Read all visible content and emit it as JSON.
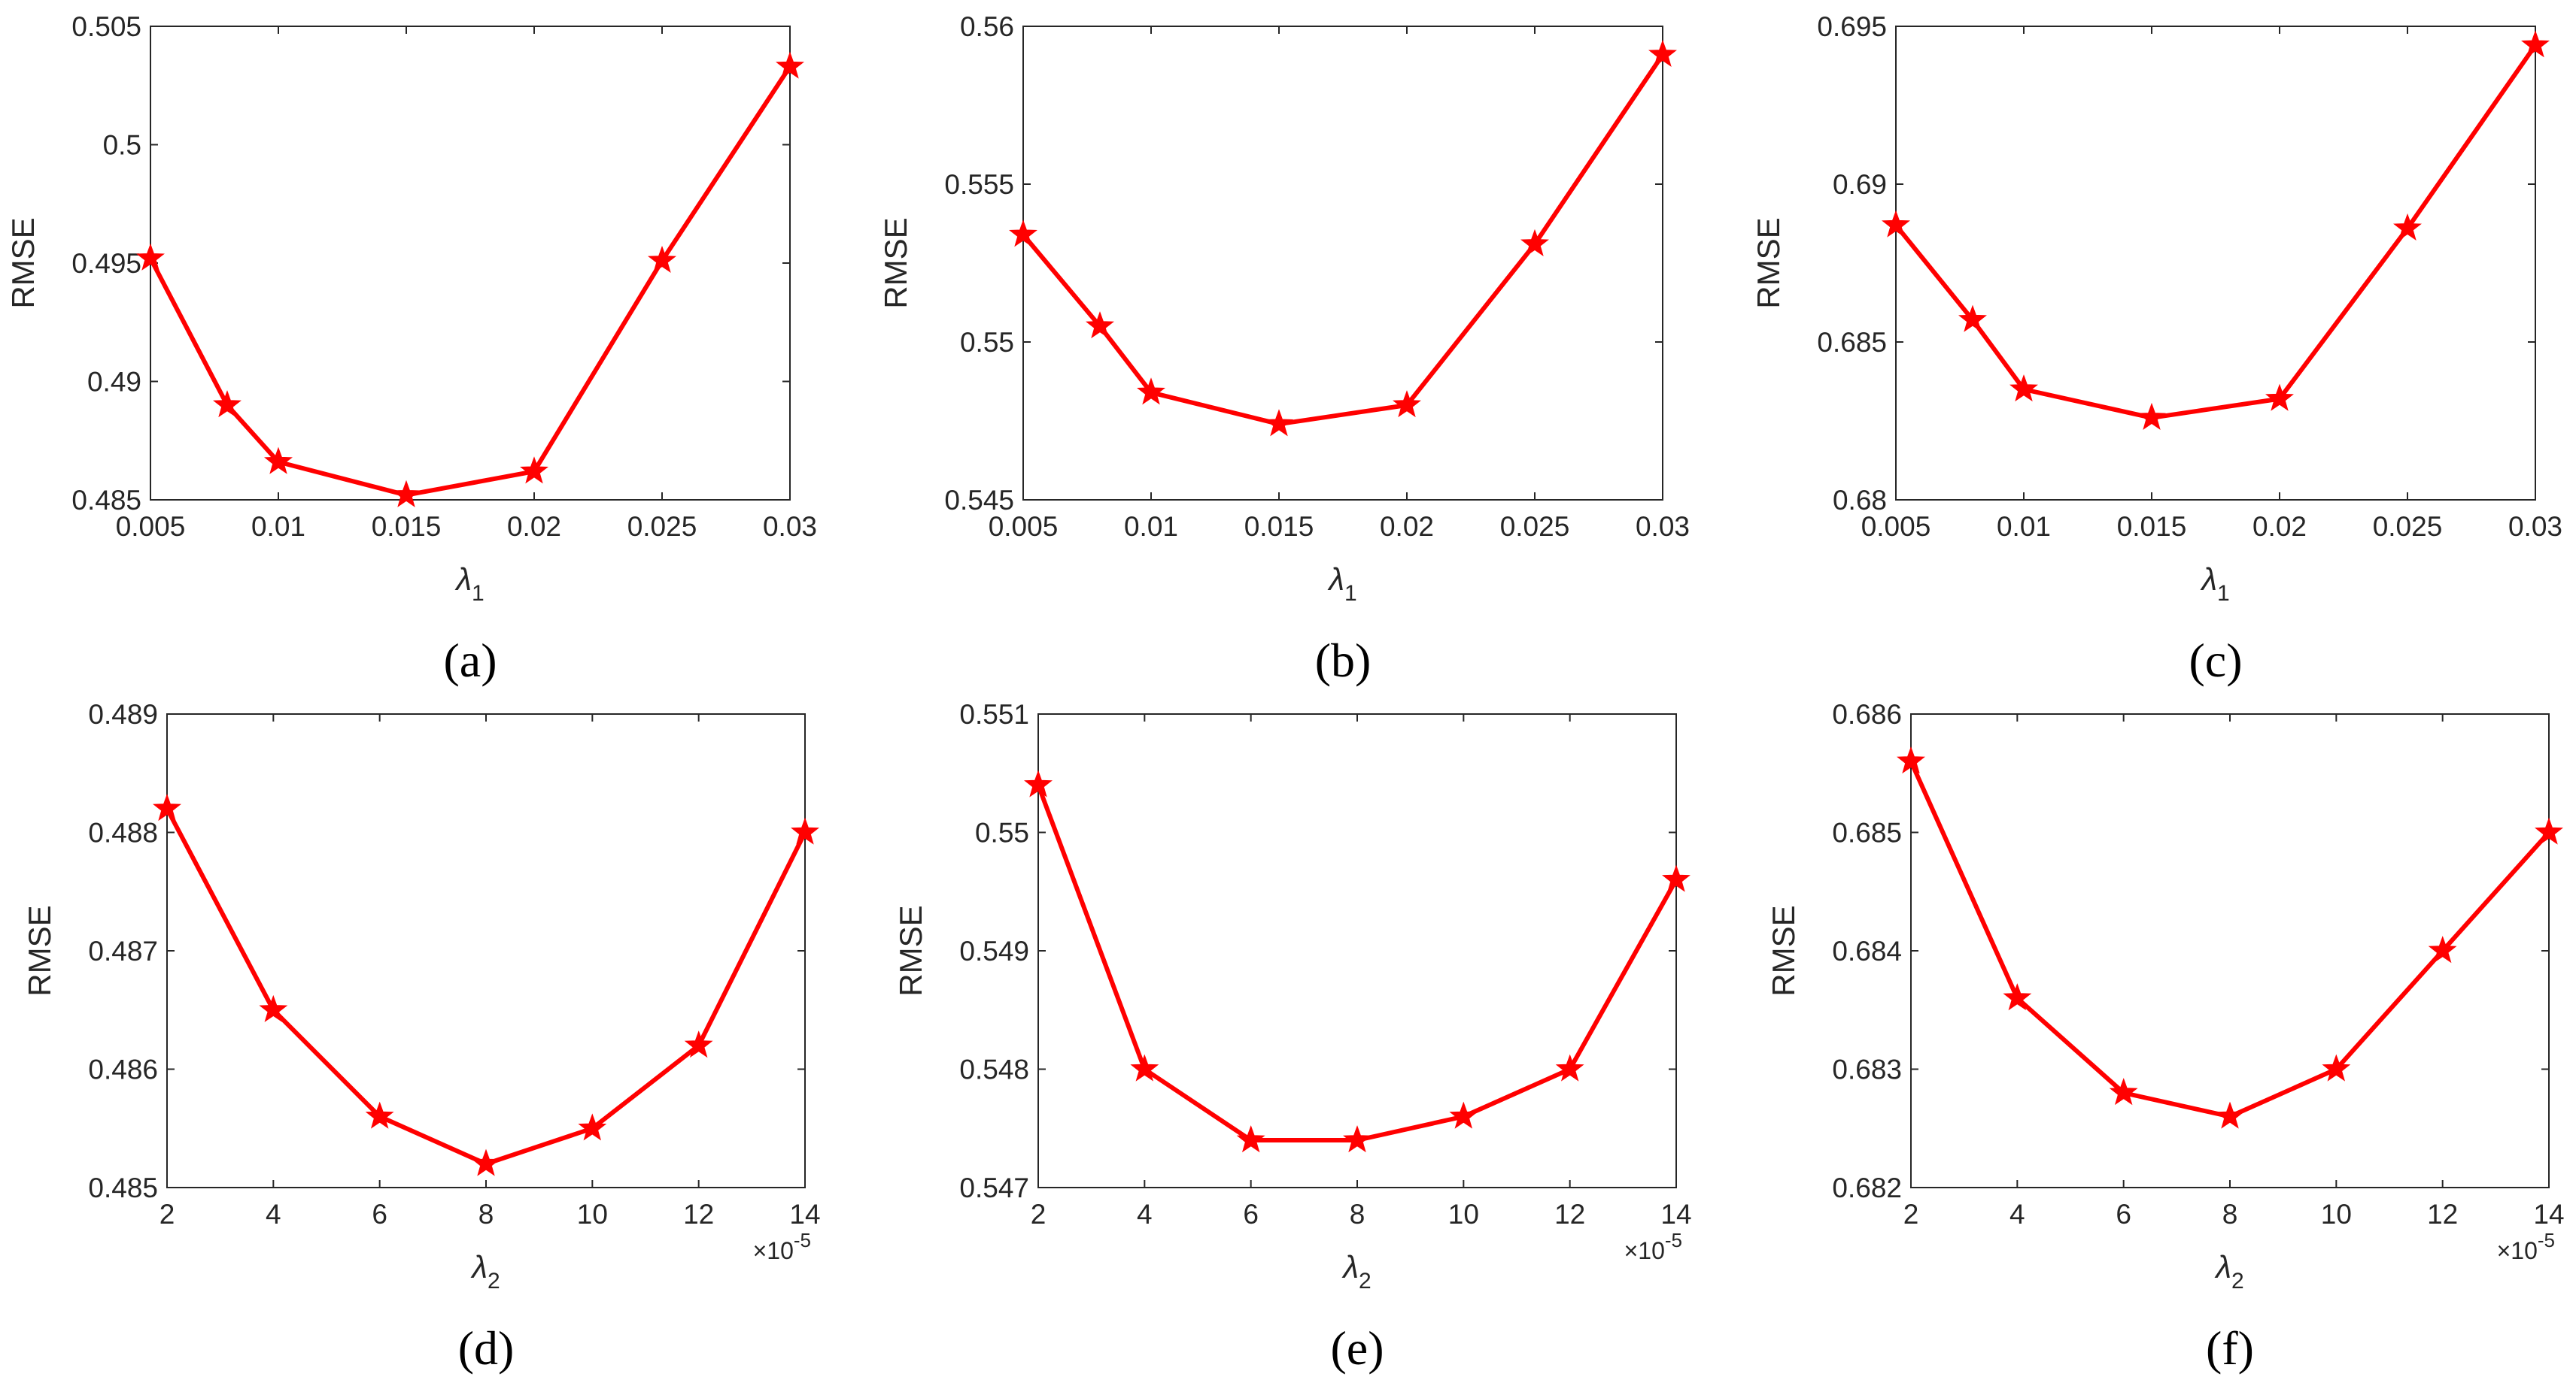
{
  "chart_data": [
    {
      "type": "line",
      "panel_label": "(a)",
      "x": [
        0.005,
        0.008,
        0.01,
        0.015,
        0.02,
        0.025,
        0.03
      ],
      "values": [
        0.4952,
        0.489,
        0.4866,
        0.4852,
        0.4862,
        0.4951,
        0.5033
      ],
      "xlim": [
        0.005,
        0.03
      ],
      "ylim": [
        0.485,
        0.505
      ],
      "xticks": [
        "0.005",
        "0.01",
        "0.015",
        "0.02",
        "0.025",
        "0.03"
      ],
      "xtick_values": [
        0.005,
        0.01,
        0.015,
        0.02,
        0.025,
        0.03
      ],
      "yticks": [
        "0.485",
        "0.49",
        "0.495",
        "0.5",
        "0.505"
      ],
      "ytick_values": [
        0.485,
        0.49,
        0.495,
        0.5,
        0.505
      ],
      "xlabel": "λ",
      "xlabel_sub": "1",
      "ylabel": "RMSE",
      "x_multiplier": "",
      "x_multiplier_exp": "",
      "marker": "star",
      "color": "#ff0000"
    },
    {
      "type": "line",
      "panel_label": "(b)",
      "x": [
        0.005,
        0.008,
        0.01,
        0.015,
        0.02,
        0.025,
        0.03
      ],
      "values": [
        0.5534,
        0.5505,
        0.5484,
        0.5474,
        0.548,
        0.5531,
        0.5591
      ],
      "xlim": [
        0.005,
        0.03
      ],
      "ylim": [
        0.545,
        0.56
      ],
      "xticks": [
        "0.005",
        "0.01",
        "0.015",
        "0.02",
        "0.025",
        "0.03"
      ],
      "xtick_values": [
        0.005,
        0.01,
        0.015,
        0.02,
        0.025,
        0.03
      ],
      "yticks": [
        "0.545",
        "0.55",
        "0.555",
        "0.56"
      ],
      "ytick_values": [
        0.545,
        0.55,
        0.555,
        0.56
      ],
      "xlabel": "λ",
      "xlabel_sub": "1",
      "ylabel": "RMSE",
      "x_multiplier": "",
      "x_multiplier_exp": "",
      "marker": "star",
      "color": "#ff0000"
    },
    {
      "type": "line",
      "panel_label": "(c)",
      "x": [
        0.005,
        0.008,
        0.01,
        0.015,
        0.02,
        0.025,
        0.03
      ],
      "values": [
        0.6887,
        0.6857,
        0.6835,
        0.6826,
        0.6832,
        0.6886,
        0.6944
      ],
      "xlim": [
        0.005,
        0.03
      ],
      "ylim": [
        0.68,
        0.695
      ],
      "xticks": [
        "0.005",
        "0.01",
        "0.015",
        "0.02",
        "0.025",
        "0.03"
      ],
      "xtick_values": [
        0.005,
        0.01,
        0.015,
        0.02,
        0.025,
        0.03
      ],
      "yticks": [
        "0.68",
        "0.685",
        "0.69",
        "0.695"
      ],
      "ytick_values": [
        0.68,
        0.685,
        0.69,
        0.695
      ],
      "xlabel": "λ",
      "xlabel_sub": "1",
      "ylabel": "RMSE",
      "x_multiplier": "",
      "x_multiplier_exp": "",
      "marker": "star",
      "color": "#ff0000"
    },
    {
      "type": "line",
      "panel_label": "(d)",
      "x": [
        2,
        4,
        6,
        8,
        10,
        12,
        14
      ],
      "values": [
        0.4882,
        0.4865,
        0.4856,
        0.4852,
        0.4855,
        0.4862,
        0.488
      ],
      "xlim": [
        2,
        14
      ],
      "ylim": [
        0.485,
        0.489
      ],
      "xticks": [
        "2",
        "4",
        "6",
        "8",
        "10",
        "12",
        "14"
      ],
      "xtick_values": [
        2,
        4,
        6,
        8,
        10,
        12,
        14
      ],
      "yticks": [
        "0.485",
        "0.486",
        "0.487",
        "0.488",
        "0.489"
      ],
      "ytick_values": [
        0.485,
        0.486,
        0.487,
        0.488,
        0.489
      ],
      "xlabel": "λ",
      "xlabel_sub": "2",
      "ylabel": "RMSE",
      "x_multiplier": "×10",
      "x_multiplier_exp": "-5",
      "marker": "star",
      "color": "#ff0000"
    },
    {
      "type": "line",
      "panel_label": "(e)",
      "x": [
        2,
        4,
        6,
        8,
        10,
        12,
        14
      ],
      "values": [
        0.5504,
        0.548,
        0.5474,
        0.5474,
        0.5476,
        0.548,
        0.5496
      ],
      "xlim": [
        2,
        14
      ],
      "ylim": [
        0.547,
        0.551
      ],
      "xticks": [
        "2",
        "4",
        "6",
        "8",
        "10",
        "12",
        "14"
      ],
      "xtick_values": [
        2,
        4,
        6,
        8,
        10,
        12,
        14
      ],
      "yticks": [
        "0.547",
        "0.548",
        "0.549",
        "0.55",
        "0.551"
      ],
      "ytick_values": [
        0.547,
        0.548,
        0.549,
        0.55,
        0.551
      ],
      "xlabel": "λ",
      "xlabel_sub": "2",
      "ylabel": "RMSE",
      "x_multiplier": "×10",
      "x_multiplier_exp": "-5",
      "marker": "star",
      "color": "#ff0000"
    },
    {
      "type": "line",
      "panel_label": "(f)",
      "x": [
        2,
        4,
        6,
        8,
        10,
        12,
        14
      ],
      "values": [
        0.6856,
        0.6836,
        0.6828,
        0.6826,
        0.683,
        0.684,
        0.685
      ],
      "xlim": [
        2,
        14
      ],
      "ylim": [
        0.682,
        0.686
      ],
      "xticks": [
        "2",
        "4",
        "6",
        "8",
        "10",
        "12",
        "14"
      ],
      "xtick_values": [
        2,
        4,
        6,
        8,
        10,
        12,
        14
      ],
      "yticks": [
        "0.682",
        "0.683",
        "0.684",
        "0.685",
        "0.686"
      ],
      "ytick_values": [
        0.682,
        0.683,
        0.684,
        0.685,
        0.686
      ],
      "xlabel": "λ",
      "xlabel_sub": "2",
      "ylabel": "RMSE",
      "x_multiplier": "×10",
      "x_multiplier_exp": "-5",
      "marker": "star",
      "color": "#ff0000"
    }
  ]
}
